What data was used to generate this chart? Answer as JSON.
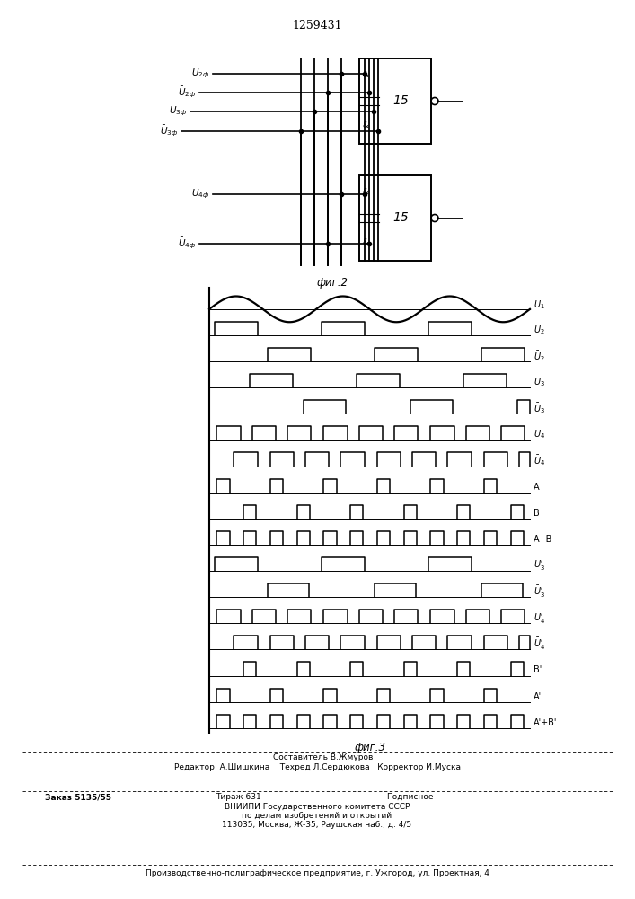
{
  "patent_number": "1259431",
  "fig2_caption": "фиг.2",
  "fig3_caption": "фиг.3",
  "background": "#ffffff",
  "lc": "#000000",
  "footer_lines": [
    "Составитель В.Жмуров",
    "Редактор  А.Шишкина    Техред Л.Сердюкова   Корректор И.Муска",
    "Заказ 5135/55          Тираж 631             Подписное",
    "ВНИИПИ Государственного комитета СССР",
    "по делам изобретений и открытий",
    "113035, Москва, Ж-35, Раушская наб., д. 4/5",
    "Производственно-полиграфическое предприятие, г. Ужгород, ул. Проектная, 4"
  ]
}
